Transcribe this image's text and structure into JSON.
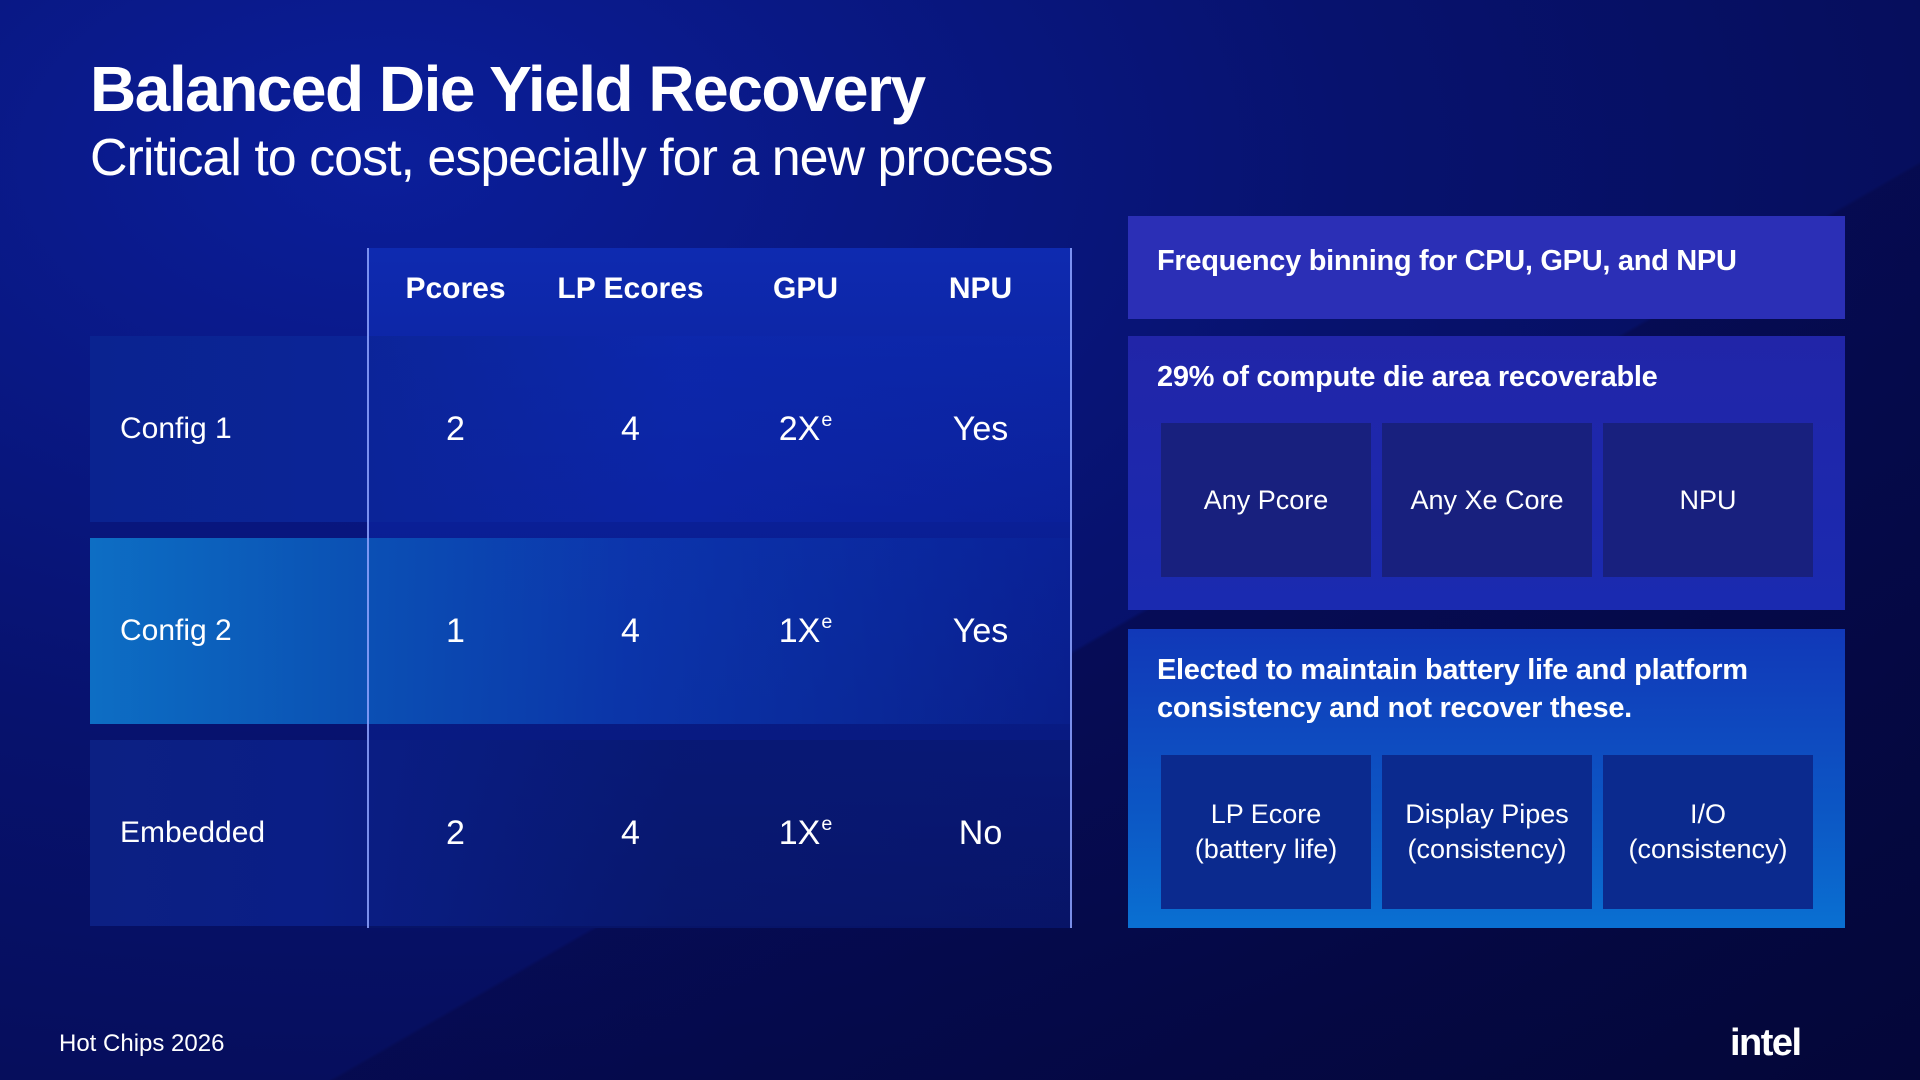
{
  "slide": {
    "title": "Balanced Die Yield Recovery",
    "subtitle": "Critical to cost, especially for a new process"
  },
  "table": {
    "columns": [
      "Pcores",
      "LP Ecores",
      "GPU",
      "NPU"
    ],
    "rows": [
      {
        "label": "Config 1",
        "pcores": "2",
        "lp_ecores": "4",
        "gpu": "2X",
        "gpu_sup": "e",
        "npu": "Yes"
      },
      {
        "label": "Config 2",
        "pcores": "1",
        "lp_ecores": "4",
        "gpu": "1X",
        "gpu_sup": "e",
        "npu": "Yes"
      },
      {
        "label": "Embedded",
        "pcores": "2",
        "lp_ecores": "4",
        "gpu": "1X",
        "gpu_sup": "e",
        "npu": "No"
      }
    ]
  },
  "panels": {
    "binning": {
      "heading": "Frequency binning for CPU,  GPU, and NPU"
    },
    "recoverable": {
      "heading": "29% of compute die area recoverable",
      "boxes": [
        "Any Pcore",
        "Any Xe Core",
        "NPU"
      ]
    },
    "not_recovered": {
      "heading": "Elected to maintain battery life and platform consistency and not recover these.",
      "boxes": [
        {
          "line1": "LP Ecore",
          "line2": "(battery life)"
        },
        {
          "line1": "Display Pipes",
          "line2": "(consistency)"
        },
        {
          "line1": "I/O",
          "line2": "(consistency)"
        }
      ]
    }
  },
  "footer": {
    "event": "Hot Chips 2026",
    "logo": "intel"
  }
}
